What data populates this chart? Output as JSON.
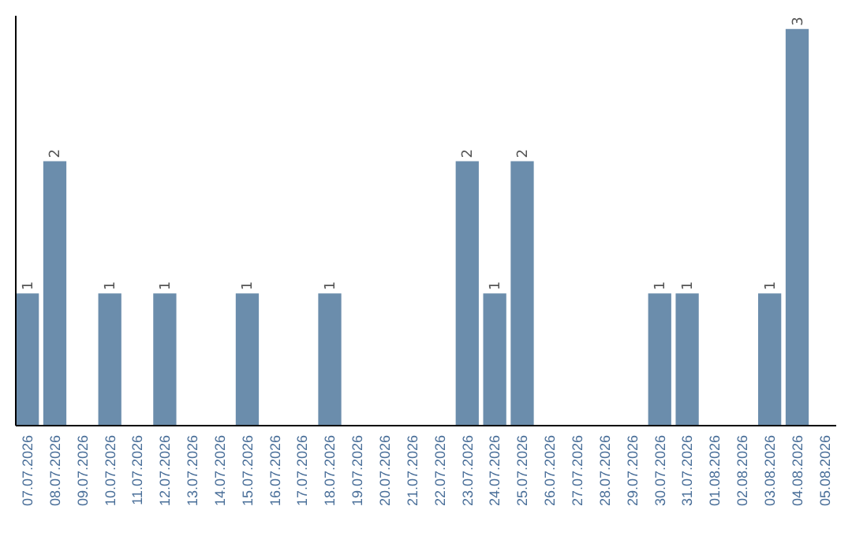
{
  "chart_data": {
    "type": "bar",
    "categories": [
      "07.07.2026",
      "08.07.2026",
      "09.07.2026",
      "10.07.2026",
      "11.07.2026",
      "12.07.2026",
      "13.07.2026",
      "14.07.2026",
      "15.07.2026",
      "16.07.2026",
      "17.07.2026",
      "18.07.2026",
      "19.07.2026",
      "20.07.2026",
      "21.07.2026",
      "22.07.2026",
      "23.07.2026",
      "24.07.2026",
      "25.07.2026",
      "26.07.2026",
      "27.07.2026",
      "28.07.2026",
      "29.07.2026",
      "30.07.2026",
      "31.07.2026",
      "01.08.2026",
      "02.08.2026",
      "03.08.2026",
      "04.08.2026",
      "05.08.2026"
    ],
    "values": [
      1,
      2,
      null,
      1,
      null,
      1,
      null,
      null,
      1,
      null,
      null,
      1,
      null,
      null,
      null,
      null,
      2,
      1,
      2,
      null,
      null,
      null,
      null,
      1,
      1,
      null,
      null,
      1,
      3,
      null
    ],
    "color": "#6b8dac",
    "ylim": [
      0,
      3.1
    ],
    "data_labels": true,
    "tick_labels": "x"
  }
}
